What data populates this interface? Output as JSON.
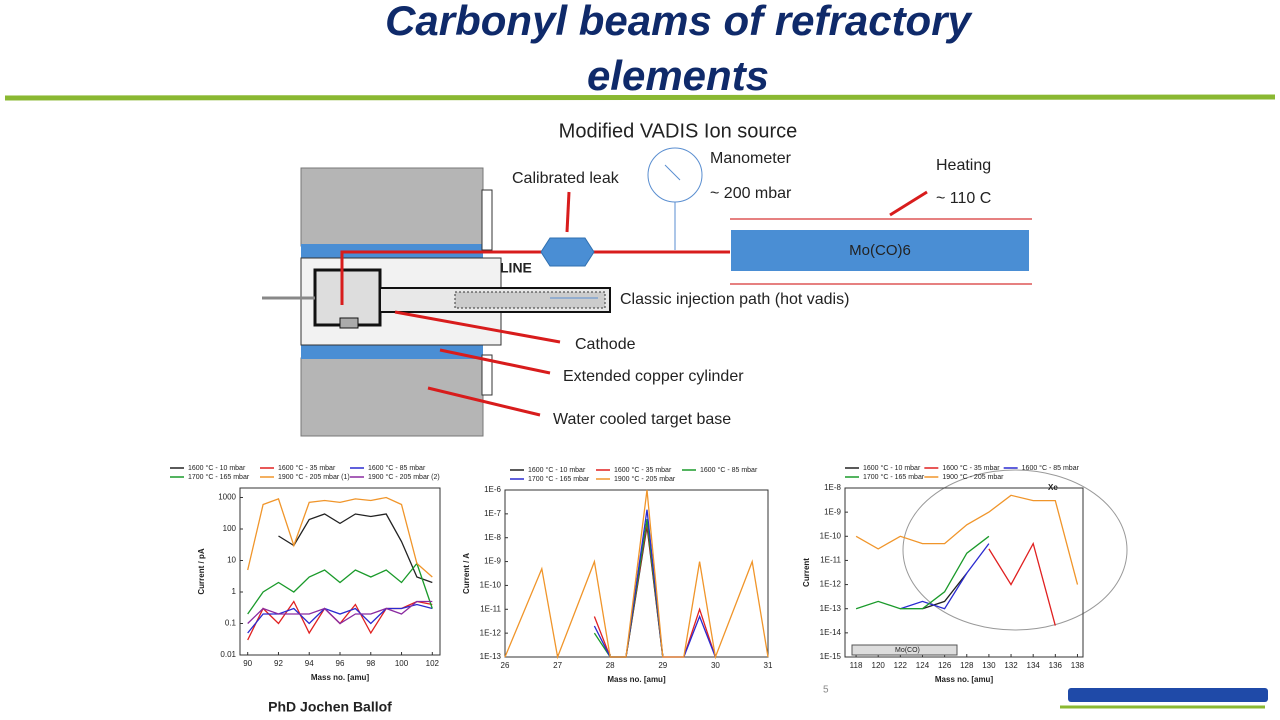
{
  "title": "Carbonyl beams of refractory elements",
  "diagram": {
    "heading": "Modified VADIS Ion source",
    "calibrated_leak": "Calibrated leak",
    "manometer": "Manometer",
    "pressure": "~ 200 mbar",
    "heating": "Heating",
    "temperature": "~ 110 C",
    "oven": "Mo(CO)6",
    "line": "LINE",
    "classic_path": "Classic injection path  (hot vadis)",
    "cathode": "Cathode",
    "copper": "Extended copper cylinder",
    "target_base": "Water cooled target base"
  },
  "footer": "PhD Jochen Ballof",
  "page_number": "5",
  "chart_data": [
    {
      "type": "line",
      "log_y": true,
      "xlabel": "Mass no. [amu]",
      "ylabel": "Current / pA",
      "x": [
        90,
        91,
        92,
        93,
        94,
        95,
        96,
        97,
        98,
        99,
        100,
        101,
        102
      ],
      "xlim": [
        89.5,
        102.5
      ],
      "xticks": [
        90,
        92,
        94,
        96,
        98,
        100,
        102
      ],
      "ylim": [
        0.01,
        2000
      ],
      "yticks": [
        0.01,
        0.1,
        1,
        10,
        100,
        1000
      ],
      "series": [
        {
          "name": "1600 °C -  10 mbar",
          "color": "#222222",
          "values": [
            null,
            null,
            60,
            30,
            200,
            300,
            150,
            300,
            250,
            300,
            40,
            3,
            2
          ]
        },
        {
          "name": "1600 °C -  35 mbar",
          "color": "#e02020",
          "values": [
            0.03,
            0.3,
            0.1,
            0.5,
            0.05,
            0.3,
            0.1,
            0.4,
            0.05,
            0.3,
            0.3,
            0.5,
            0.4
          ]
        },
        {
          "name": "1600 °C -  85 mbar",
          "color": "#2a2ad0",
          "values": [
            0.05,
            0.2,
            0.2,
            0.3,
            0.1,
            0.3,
            0.2,
            0.3,
            0.1,
            0.3,
            0.3,
            0.4,
            0.3
          ]
        },
        {
          "name": "1700 °C -  165 mbar",
          "color": "#1a9a2a",
          "values": [
            0.2,
            1,
            2,
            1,
            3,
            5,
            2,
            5,
            3,
            5,
            2,
            8,
            0.3
          ]
        },
        {
          "name": "1900 °C -  205 mbar (1)",
          "color": "#f0952a",
          "values": [
            5,
            600,
            900,
            30,
            700,
            800,
            700,
            900,
            800,
            1000,
            600,
            8,
            3
          ]
        },
        {
          "name": "1900 °C -  205 mbar (2)",
          "color": "#8a2aa0",
          "values": [
            0.1,
            0.3,
            0.2,
            0.2,
            0.2,
            0.3,
            0.1,
            0.2,
            0.2,
            0.3,
            0.2,
            0.5,
            0.5
          ]
        }
      ]
    },
    {
      "type": "line",
      "log_y": true,
      "xlabel": "Mass no. [amu]",
      "ylabel": "Current / A",
      "x": [
        26,
        26.7,
        27,
        27.7,
        28,
        28.3,
        28.7,
        29,
        29.4,
        29.7,
        30,
        30.7,
        31
      ],
      "xlim": [
        26,
        31
      ],
      "xticks": [
        26,
        27,
        28,
        29,
        30,
        31
      ],
      "ylim": [
        1e-13,
        1e-06
      ],
      "yticks": [
        {
          "value": 1e-13,
          "label": "1E-13"
        },
        {
          "value": 1e-12,
          "label": "1E-12"
        },
        {
          "value": 1e-11,
          "label": "1E-11"
        },
        {
          "value": 1e-10,
          "label": "1E-10"
        },
        {
          "value": 1e-09,
          "label": "1E-9"
        },
        {
          "value": 1e-08,
          "label": "1E-8"
        },
        {
          "value": 1e-07,
          "label": "1E-7"
        },
        {
          "value": 1e-06,
          "label": "1E-6"
        }
      ],
      "series": [
        {
          "name": "1600 °C - 10 mbar",
          "color": "#222222",
          "values": [
            null,
            null,
            null,
            null,
            1e-13,
            1e-13,
            3e-08,
            1e-13,
            null,
            null,
            null,
            null,
            null
          ]
        },
        {
          "name": "1600 °C - 35 mbar",
          "color": "#e02020",
          "values": [
            null,
            1e-12,
            null,
            5e-12,
            1e-13,
            1e-13,
            4e-08,
            1e-13,
            1e-13,
            1e-11,
            1e-13,
            null,
            null
          ]
        },
        {
          "name": "1600 °C - 85 mbar",
          "color": "#1a9a2a",
          "values": [
            null,
            null,
            null,
            1e-12,
            1e-13,
            1e-13,
            6e-08,
            1e-13,
            null,
            null,
            null,
            null,
            null
          ]
        },
        {
          "name": "1700 °C - 165 mbar",
          "color": "#2a2ad0",
          "values": [
            null,
            null,
            null,
            2e-12,
            1e-13,
            1e-13,
            1.5e-07,
            1e-13,
            1e-13,
            5e-12,
            1e-13,
            null,
            null
          ]
        },
        {
          "name": "1900 °C - 205 mbar",
          "color": "#f0952a",
          "values": [
            1e-13,
            5e-10,
            1e-13,
            1e-09,
            1e-13,
            1e-13,
            1e-06,
            1e-13,
            1e-13,
            1e-09,
            1e-13,
            1e-09,
            1e-13
          ]
        }
      ]
    },
    {
      "type": "line",
      "log_y": true,
      "xlabel": "Mass no. [amu]",
      "ylabel": "Current",
      "annotations": [
        "Xe",
        "Mo(CO)"
      ],
      "x": [
        118,
        120,
        122,
        124,
        126,
        128,
        130,
        132,
        134,
        136,
        138
      ],
      "xlim": [
        117,
        138.5
      ],
      "xticks": [
        118,
        120,
        122,
        124,
        126,
        128,
        130,
        132,
        134,
        136,
        138
      ],
      "ylim": [
        1e-15,
        1e-08
      ],
      "yticks": [
        {
          "value": 1e-15,
          "label": "1E-15"
        },
        {
          "value": 1e-14,
          "label": "1E-14"
        },
        {
          "value": 1e-13,
          "label": "1E-13"
        },
        {
          "value": 1e-12,
          "label": "1E-12"
        },
        {
          "value": 1e-11,
          "label": "1E-11"
        },
        {
          "value": 1e-10,
          "label": "1E-10"
        },
        {
          "value": 1e-09,
          "label": "1E-9"
        },
        {
          "value": 1e-08,
          "label": "1E-8"
        }
      ],
      "series": [
        {
          "name": "1600 °C - 10 mbar",
          "color": "#222222",
          "values": [
            null,
            null,
            null,
            1e-13,
            2e-13,
            3e-12,
            null,
            null,
            null,
            null,
            null
          ]
        },
        {
          "name": "1600 °C - 35 mbar",
          "color": "#e02020",
          "values": [
            null,
            null,
            null,
            null,
            null,
            null,
            3e-11,
            1e-12,
            5e-11,
            2e-14,
            null
          ]
        },
        {
          "name": "1600 °C - 85 mbar",
          "color": "#2a2ad0",
          "values": [
            null,
            null,
            1e-13,
            2e-13,
            1e-13,
            3e-12,
            5e-11,
            null,
            null,
            null,
            null
          ]
        },
        {
          "name": "1700 °C - 165 mbar",
          "color": "#1a9a2a",
          "values": [
            1e-13,
            2e-13,
            1e-13,
            1e-13,
            5e-13,
            2e-11,
            1e-10,
            null,
            null,
            null,
            null
          ]
        },
        {
          "name": "1900 °C - 205 mbar",
          "color": "#f0952a",
          "values": [
            1e-10,
            3e-11,
            1e-10,
            5e-11,
            5e-11,
            3e-10,
            1e-09,
            5e-09,
            3e-09,
            3e-09,
            1e-12
          ]
        }
      ]
    }
  ]
}
